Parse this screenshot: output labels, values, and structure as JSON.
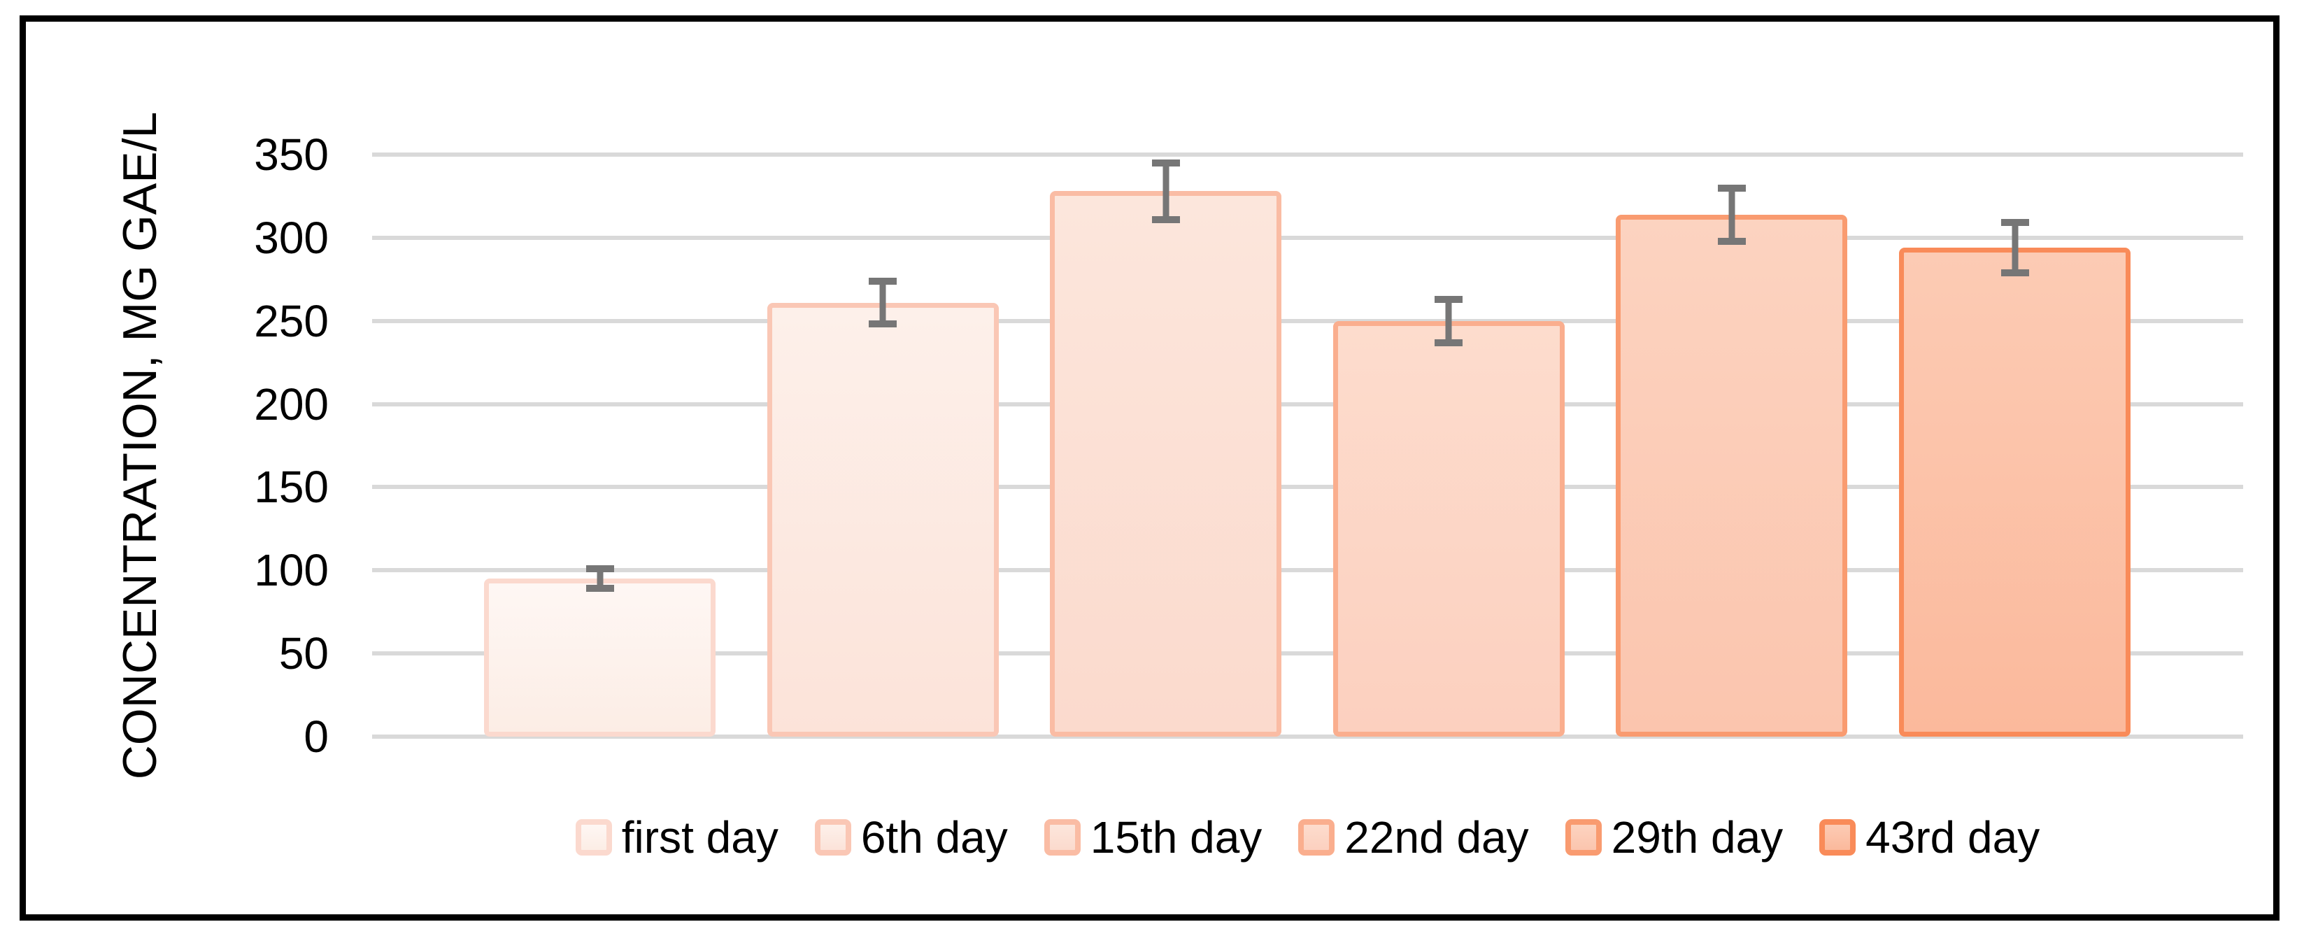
{
  "figure": {
    "frame_color": "#000000",
    "background_color": "#ffffff"
  },
  "chart_data": {
    "type": "bar",
    "title": "",
    "xlabel": "",
    "ylabel": "CONCENTRATION, MG GAE/L",
    "ylim": [
      0,
      350
    ],
    "ytick_step": 50,
    "ytick_labels": [
      "350",
      "300",
      "250",
      "200",
      "150",
      "100",
      "50",
      "0"
    ],
    "grid": true,
    "gridline_color": "#d9d9d9",
    "error_bar_color": "#767676",
    "legend_position": "bottom",
    "categories": [
      "first day",
      "6th day",
      "15th day",
      "22nd day",
      "29th day",
      "43rd day"
    ],
    "values": [
      95,
      261,
      328,
      250,
      314,
      294
    ],
    "errors": [
      6,
      13,
      17,
      13,
      16,
      15
    ],
    "series_colors": [
      {
        "fill_top": "#fef7f4",
        "fill_bottom": "#fcede5",
        "border": "#fbd9ce"
      },
      {
        "fill_top": "#fdf0ea",
        "fill_bottom": "#fce3d9",
        "border": "#fac7b5"
      },
      {
        "fill_top": "#fce6dc",
        "fill_bottom": "#fbdacd",
        "border": "#fabca4"
      },
      {
        "fill_top": "#fddccd",
        "fill_bottom": "#fcd0bf",
        "border": "#faae8e"
      },
      {
        "fill_top": "#fcd3c0",
        "fill_bottom": "#fbc5ae",
        "border": "#f99b70"
      },
      {
        "fill_top": "#fccbb4",
        "fill_bottom": "#fbb99c",
        "border": "#f98b59"
      }
    ]
  }
}
